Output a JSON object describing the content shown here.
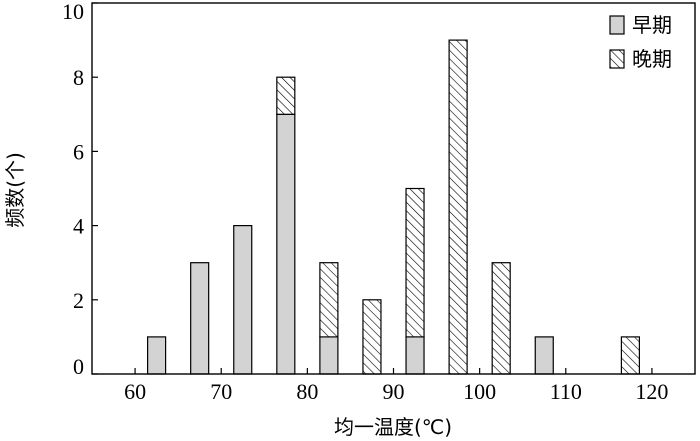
{
  "chart_data": {
    "type": "bar",
    "stacked": true,
    "xlabel": "均一温度(℃)",
    "ylabel": "频数(个)",
    "xlim": [
      55,
      125
    ],
    "ylim": [
      0,
      10
    ],
    "xticks": [
      60,
      70,
      80,
      90,
      100,
      110,
      120
    ],
    "yticks": [
      0,
      2,
      4,
      6,
      8,
      10
    ],
    "legend_position": "top-right",
    "colors": {
      "early": "#d3d3d3",
      "late_hatch": "#000000"
    },
    "x": [
      62.5,
      67.5,
      72.5,
      77.5,
      82.5,
      87.5,
      92.5,
      97.5,
      102.5,
      107.5,
      117.5
    ],
    "series": [
      {
        "name": "早期",
        "pattern": "solid-gray",
        "values": [
          1,
          3,
          4,
          7,
          1,
          0,
          1,
          0,
          0,
          1,
          0
        ]
      },
      {
        "name": "晚期",
        "pattern": "hatched",
        "values": [
          0,
          0,
          0,
          1,
          2,
          2,
          4,
          9,
          3,
          0,
          1
        ]
      }
    ]
  }
}
